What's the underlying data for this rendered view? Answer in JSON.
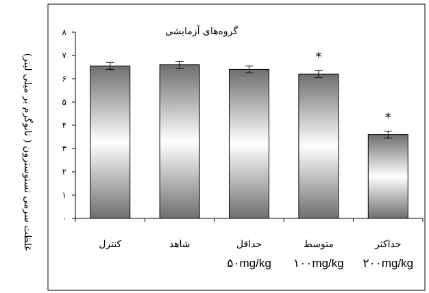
{
  "chart_data": {
    "type": "bar",
    "title": "گروه‌های آزمایشی",
    "ylabel": "غلظت سرمی تستوسترون ( نانوگرم بر میلی لیتر)",
    "xlabel": "",
    "categories": [
      {
        "name": "کنترل",
        "dose": ""
      },
      {
        "name": "شاهد",
        "dose": ""
      },
      {
        "name": "حداقل",
        "dose": "۵۰mg/kg"
      },
      {
        "name": "متوسط",
        "dose": "۱۰۰mg/kg"
      },
      {
        "name": "حداکثر",
        "dose": "۲۰۰mg/kg"
      }
    ],
    "values": [
      6.55,
      6.6,
      6.4,
      6.2,
      3.6
    ],
    "errors": [
      0.15,
      0.15,
      0.15,
      0.15,
      0.15
    ],
    "markers": [
      "",
      "",
      "",
      "*",
      "*"
    ],
    "ylim": [
      0,
      8
    ],
    "yticks": [
      0,
      1,
      2,
      3,
      4,
      5,
      6,
      7,
      8
    ],
    "ytick_labels": [
      "۰",
      "۱",
      "۲",
      "۳",
      "۴",
      "۵",
      "۶",
      "۷",
      "۸"
    ],
    "grid": false,
    "legend": "none",
    "colors": {
      "bar_dark": "#6e6e6e",
      "bar_light": "#ffffff",
      "axis": "#000000"
    }
  }
}
